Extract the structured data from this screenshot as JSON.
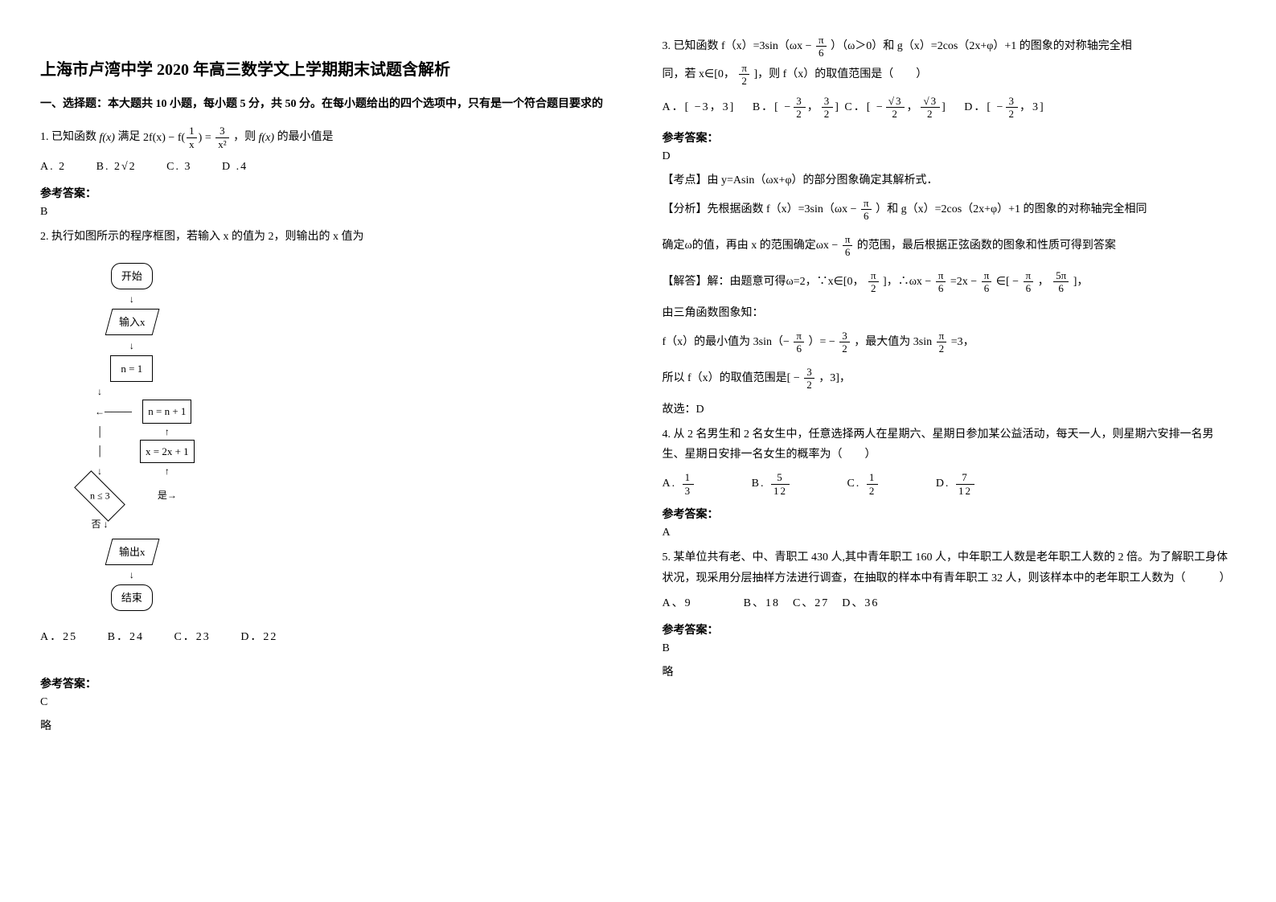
{
  "title": "上海市卢湾中学 2020 年高三数学文上学期期末试题含解析",
  "section1_header": "一、选择题：本大题共 10 小题，每小题 5 分，共 50 分。在每小题给出的四个选项中，只有是一个符合题目要求的",
  "q1": {
    "prefix": "1. 已知函数",
    "mid": "满足",
    "formula_left": "f(x)",
    "formula_main_1": "2f(x) − f(",
    "formula_main_2": ") = ",
    "suffix": "，则",
    "suffix2": "的最小值是",
    "optA": "A. 2",
    "optB": "B. 2√2",
    "optC": "C. 3",
    "optD": "D .4",
    "answer_label": "参考答案：",
    "answer": "B"
  },
  "q2": {
    "text": "2. 执行如图所示的程序框图，若输入 x 的值为 2，则输出的 x 值为",
    "flow": {
      "start": "开始",
      "input": "输入x",
      "init": "n = 1",
      "step1": "n = n + 1",
      "step2": "x = 2x + 1",
      "cond": "n ≤ 3",
      "yes": "是",
      "no": "否",
      "output": "输出x",
      "end": "结束"
    },
    "optA": "A．25",
    "optB": "B．24",
    "optC": "C．23",
    "optD": "D．22",
    "answer_label": "参考答案：",
    "answer": "C",
    "note": "略"
  },
  "q3": {
    "line1_a": "3. 已知函数 f（x）=3sin（ωx −",
    "line1_b": "）（ω＞0）和 g（x）=2cos（2x+φ）+1 的图象的对称轴完全相",
    "line2_a": "同，若 x∈[0，",
    "line2_b": "]，则 f（x）的取值范围是（　　）",
    "optA": "A．[ −3，3]",
    "optB_a": "B．[ −",
    "optB_b": "，",
    "optB_c": "]",
    "optC_a": "C．[ −",
    "optC_b": "，",
    "optC_c": "]",
    "optD_a": "D．[ −",
    "optD_b": "，3]",
    "answer_label": "参考答案：",
    "answer": "D",
    "exam_point": "【考点】由 y=Asin（ωx+φ）的部分图象确定其解析式．",
    "analysis_a": "【分析】先根据函数 f（x）=3sin（ωx −",
    "analysis_b": "）和 g（x）=2cos（2x+φ）+1 的图象的对称轴完全相同",
    "analysis2_a": "确定ω的值，再由 x 的范围确定ωx −",
    "analysis2_b": "的范围，最后根据正弦函数的图象和性质可得到答案",
    "solve_a": "【解答】解：由题意可得ω=2，∵x∈[0，",
    "solve_b": "]，∴ωx −",
    "solve_c": "=2x −",
    "solve_d": "∈[ −",
    "solve_e": "，",
    "solve_f": "]，",
    "solve2": "由三角函数图象知：",
    "solve3_a": "f（x）的最小值为 3sin（−",
    "solve3_b": "）= −",
    "solve3_c": "，最大值为 3sin",
    "solve3_d": "=3，",
    "solve4_a": "所以 f（x）的取值范围是[ −",
    "solve4_b": "，3]，",
    "solve5": "故选：D"
  },
  "q4": {
    "text": "4. 从 2 名男生和 2 名女生中，任意选择两人在星期六、星期日参加某公益活动，每天一人，则星期六安排一名男生、星期日安排一名女生的概率为（　　）",
    "optA": "A.",
    "optB": "B.",
    "optC": "C.",
    "optD": "D.",
    "answer_label": "参考答案：",
    "answer": "A"
  },
  "q5": {
    "text": "5. 某单位共有老、中、青职工 430 人,其中青年职工 160 人，中年职工人数是老年职工人数的 2 倍。为了解职工身体状况，现采用分层抽样方法进行调查，在抽取的样本中有青年职工 32 人，则该样本中的老年职工人数为（　　　）",
    "options": "A、9　　　　B、18　C、27　D、36",
    "answer_label": "参考答案：",
    "answer": "B",
    "note": "略"
  }
}
